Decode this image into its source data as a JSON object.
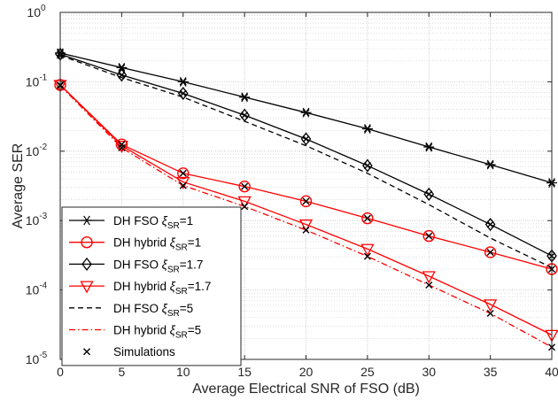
{
  "chart_data": {
    "type": "line",
    "xlabel": "Average Electrical SNR of FSO (dB)",
    "ylabel": "Average SER",
    "xlim": [
      0,
      40
    ],
    "ylim": [
      1e-05,
      1
    ],
    "yscale": "log",
    "grid": true,
    "legend_position": "bottom-left",
    "x_ticks": [
      "0",
      "5",
      "10",
      "15",
      "20",
      "25",
      "30",
      "35",
      "40"
    ],
    "y_ticks": [
      {
        "base": "10",
        "exp": "-5"
      },
      {
        "base": "10",
        "exp": "-4"
      },
      {
        "base": "10",
        "exp": "-3"
      },
      {
        "base": "10",
        "exp": "-2"
      },
      {
        "base": "10",
        "exp": "-1"
      },
      {
        "base": "10",
        "exp": "0"
      }
    ],
    "x": [
      0,
      5,
      10,
      15,
      20,
      25,
      30,
      35,
      40
    ],
    "series": [
      {
        "legend_prefix": "DH FSO ",
        "xi_symbol": "ξ",
        "xi_sub": "SR",
        "legend_suffix": "=1",
        "color": "#000000",
        "dash": "solid",
        "marker": "star",
        "values": [
          0.26,
          0.16,
          0.1,
          0.06,
          0.036,
          0.021,
          0.0115,
          0.0064,
          0.0035
        ]
      },
      {
        "legend_prefix": "DH hybrid ",
        "xi_symbol": "ξ",
        "xi_sub": "SR",
        "legend_suffix": "=1",
        "color": "#ff0000",
        "dash": "solid",
        "marker": "circle",
        "values": [
          0.09,
          0.0125,
          0.0048,
          0.0031,
          0.0019,
          0.00108,
          0.0006,
          0.00035,
          0.0002
        ]
      },
      {
        "legend_prefix": "DH FSO ",
        "xi_symbol": "ξ",
        "xi_sub": "SR",
        "legend_suffix": "=1.7",
        "color": "#000000",
        "dash": "solid",
        "marker": "diamond",
        "values": [
          0.25,
          0.125,
          0.068,
          0.033,
          0.015,
          0.0062,
          0.0024,
          0.00088,
          0.00031
        ]
      },
      {
        "legend_prefix": "DH hybrid ",
        "xi_symbol": "ξ",
        "xi_sub": "SR",
        "legend_suffix": "=1.7",
        "color": "#ff0000",
        "dash": "solid",
        "marker": "triangle-down",
        "values": [
          0.09,
          0.012,
          0.0036,
          0.0019,
          0.00088,
          0.00039,
          0.000158,
          6.2e-05,
          2.25e-05
        ]
      },
      {
        "legend_prefix": "DH FSO ",
        "xi_symbol": "ξ",
        "xi_sub": "SR",
        "legend_suffix": "=5",
        "color": "#000000",
        "dash": "dashed",
        "marker": "none",
        "values": [
          0.24,
          0.115,
          0.06,
          0.027,
          0.012,
          0.0048,
          0.0017,
          0.00056,
          0.00021
        ]
      },
      {
        "legend_prefix": "DH hybrid ",
        "xi_symbol": "ξ",
        "xi_sub": "SR",
        "legend_suffix": "=5",
        "color": "#ff0000",
        "dash": "dashdot",
        "marker": "none",
        "values": [
          0.088,
          0.0112,
          0.0032,
          0.0016,
          0.00073,
          0.000305,
          0.000118,
          4.6e-05,
          1.5e-05
        ]
      }
    ],
    "simulations": {
      "legend_label": "Simulations",
      "marker": "x",
      "color": "#000000",
      "points": [
        {
          "x": 0,
          "y": 0.26
        },
        {
          "x": 0,
          "y": 0.24
        },
        {
          "x": 0,
          "y": 0.09
        },
        {
          "x": 0,
          "y": 0.088
        },
        {
          "x": 5,
          "y": 0.16
        },
        {
          "x": 5,
          "y": 0.125
        },
        {
          "x": 5,
          "y": 0.0125
        },
        {
          "x": 5,
          "y": 0.0112
        },
        {
          "x": 10,
          "y": 0.1
        },
        {
          "x": 10,
          "y": 0.068
        },
        {
          "x": 10,
          "y": 0.0048
        },
        {
          "x": 10,
          "y": 0.0032
        },
        {
          "x": 15,
          "y": 0.06
        },
        {
          "x": 15,
          "y": 0.033
        },
        {
          "x": 15,
          "y": 0.0031
        },
        {
          "x": 15,
          "y": 0.0016
        },
        {
          "x": 20,
          "y": 0.036
        },
        {
          "x": 20,
          "y": 0.015
        },
        {
          "x": 20,
          "y": 0.0019
        },
        {
          "x": 20,
          "y": 0.00073
        },
        {
          "x": 25,
          "y": 0.021
        },
        {
          "x": 25,
          "y": 0.0062
        },
        {
          "x": 25,
          "y": 0.00108
        },
        {
          "x": 25,
          "y": 0.000305
        },
        {
          "x": 30,
          "y": 0.0115
        },
        {
          "x": 30,
          "y": 0.0024
        },
        {
          "x": 30,
          "y": 0.0006
        },
        {
          "x": 30,
          "y": 0.000118
        },
        {
          "x": 35,
          "y": 0.0064
        },
        {
          "x": 35,
          "y": 0.00088
        },
        {
          "x": 35,
          "y": 0.00035
        },
        {
          "x": 35,
          "y": 4.6e-05
        },
        {
          "x": 40,
          "y": 0.0035
        },
        {
          "x": 40,
          "y": 0.00031
        },
        {
          "x": 40,
          "y": 0.0002
        },
        {
          "x": 40,
          "y": 1.5e-05
        }
      ]
    }
  }
}
